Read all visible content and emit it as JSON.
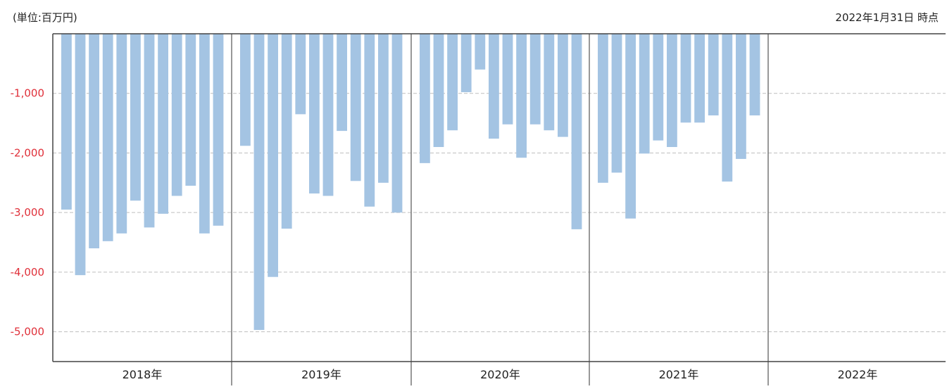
{
  "header": {
    "unit_label": "(単位:百万円)",
    "date_label": "2022年1月31日 時点"
  },
  "chart_data": {
    "type": "bar",
    "title": "",
    "xlabel": "",
    "ylabel": "",
    "ylim": [
      -5500,
      0
    ],
    "yticks": [
      -1000,
      -2000,
      -3000,
      -4000,
      -5000
    ],
    "ytick_labels": [
      "-1,000",
      "-2,000",
      "-3,000",
      "-4,000",
      "-5,000"
    ],
    "grid": true,
    "bar_color": "#a4c4e3",
    "tick_color": "#e0303a",
    "years": [
      {
        "label": "2018年",
        "values": [
          -2950,
          -4050,
          -3600,
          -3480,
          -3350,
          -2800,
          -3250,
          -3020,
          -2720,
          -2550,
          -3350,
          -3220
        ]
      },
      {
        "label": "2019年",
        "values": [
          -1880,
          -4970,
          -4080,
          -3270,
          -1350,
          -2680,
          -2720,
          -1630,
          -2470,
          -2900,
          -2500,
          -3000
        ]
      },
      {
        "label": "2020年",
        "values": [
          -2170,
          -1900,
          -1620,
          -980,
          -600,
          -1760,
          -1520,
          -2080,
          -1520,
          -1620,
          -1730,
          -3280
        ]
      },
      {
        "label": "2021年",
        "values": [
          -2500,
          -2330,
          -3100,
          -2010,
          -1790,
          -1900,
          -1490,
          -1490,
          -1370,
          -2480,
          -2100,
          -1370
        ]
      },
      {
        "label": "2022年",
        "values": []
      }
    ]
  }
}
